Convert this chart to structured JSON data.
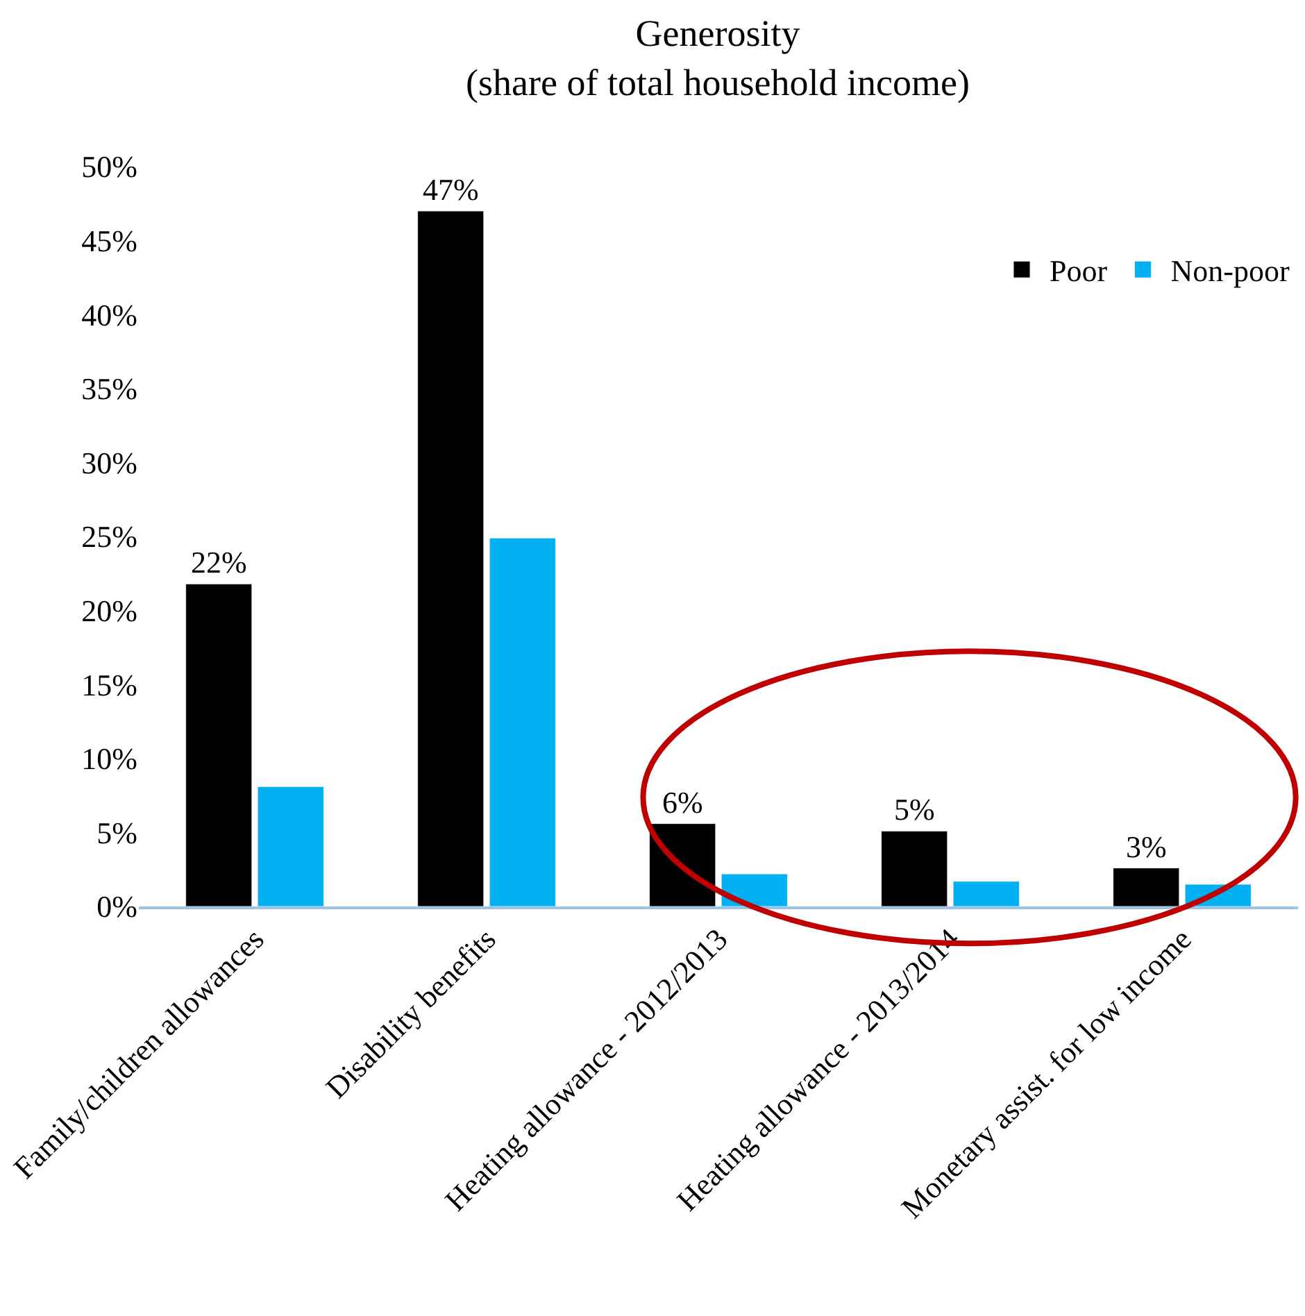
{
  "chart_data": {
    "type": "bar",
    "title": "Generosity\n(share of total household income)",
    "categories": [
      "Family/children allowances",
      "Disability benefits",
      "Heating allowance - 2012/2013",
      "Heating allowance - 2013/2014",
      "Monetary assist. for low income"
    ],
    "series": [
      {
        "name": "Poor",
        "color": "#000000",
        "values": [
          21.8,
          47,
          5.6,
          5.1,
          2.6
        ],
        "value_labels": [
          "22%",
          "47%",
          "6%",
          "5%",
          "3%"
        ]
      },
      {
        "name": "Non-poor",
        "color": "#00b0f0",
        "values": [
          8.1,
          24.9,
          2.2,
          1.7,
          1.5
        ]
      }
    ],
    "ylim": [
      0,
      50
    ],
    "yticks": [
      {
        "value": 0,
        "label": "0%"
      },
      {
        "value": 5,
        "label": "5%"
      },
      {
        "value": 10,
        "label": "10%"
      },
      {
        "value": 15,
        "label": "15%"
      },
      {
        "value": 20,
        "label": "20%"
      },
      {
        "value": 25,
        "label": "25%"
      },
      {
        "value": 30,
        "label": "30%"
      },
      {
        "value": 35,
        "label": "35%"
      },
      {
        "value": 40,
        "label": "40%"
      },
      {
        "value": 45,
        "label": "45%"
      },
      {
        "value": 50,
        "label": "50%"
      }
    ],
    "legend": "top right"
  }
}
